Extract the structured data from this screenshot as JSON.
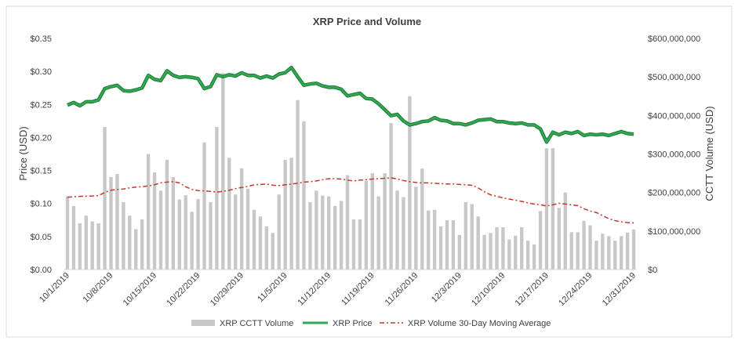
{
  "chart_data": {
    "type": "bar",
    "title": "XRP Price and Volume",
    "ylabel_left": "Price (USD)",
    "ylabel_right": "CCTT Volume (USD)",
    "y_left_range": [
      0,
      0.35
    ],
    "y_left_ticks": [
      "$0.00",
      "$0.05",
      "$0.10",
      "$0.15",
      "$0.20",
      "$0.25",
      "$0.30",
      "$0.35"
    ],
    "y_right_range": [
      0,
      600000000
    ],
    "y_right_ticks": [
      "$0",
      "$100,000,000",
      "$200,000,000",
      "$300,000,000",
      "$400,000,000",
      "$500,000,000",
      "$600,000,000"
    ],
    "x_tick_labels": [
      "10/1/2019",
      "10/8/2019",
      "10/15/2019",
      "10/22/2019",
      "10/29/2019",
      "11/5/2019",
      "11/12/2019",
      "11/19/2019",
      "11/26/2019",
      "12/3/2019",
      "12/10/2019",
      "12/17/2019",
      "12/24/2019",
      "12/31/2019"
    ],
    "x_start": "2019-10-01",
    "x_end": "2019-12-31",
    "grid": false,
    "legend_position": "bottom",
    "series": [
      {
        "name": "XRP CCTT Volume",
        "type": "bar",
        "axis": "right",
        "color": "#c8c8c8",
        "values": [
          190000000,
          165000000,
          120000000,
          140000000,
          125000000,
          120000000,
          370000000,
          240000000,
          248000000,
          175000000,
          140000000,
          105000000,
          130000000,
          300000000,
          252000000,
          205000000,
          285000000,
          240000000,
          182000000,
          193000000,
          150000000,
          183000000,
          330000000,
          175000000,
          370000000,
          510000000,
          290000000,
          195000000,
          263000000,
          210000000,
          155000000,
          138000000,
          112000000,
          95000000,
          195000000,
          285000000,
          290000000,
          440000000,
          385000000,
          175000000,
          205000000,
          192000000,
          190000000,
          165000000,
          178000000,
          245000000,
          130000000,
          130000000,
          230000000,
          250000000,
          190000000,
          250000000,
          380000000,
          205000000,
          188000000,
          450000000,
          215000000,
          262000000,
          153000000,
          155000000,
          112000000,
          128000000,
          128000000,
          90000000,
          175000000,
          170000000,
          138000000,
          90000000,
          95000000,
          110000000,
          110000000,
          78000000,
          88000000,
          110000000,
          75000000,
          65000000,
          152000000,
          315000000,
          315000000,
          160000000,
          200000000,
          97000000,
          97000000,
          126000000,
          115000000,
          75000000,
          93000000,
          87000000,
          75000000,
          87000000,
          96000000,
          104000000
        ]
      },
      {
        "name": "XRP Price",
        "type": "line",
        "axis": "left",
        "color": "#2fa84f",
        "values": [
          0.249,
          0.253,
          0.248,
          0.254,
          0.254,
          0.257,
          0.274,
          0.277,
          0.279,
          0.271,
          0.27,
          0.272,
          0.275,
          0.294,
          0.288,
          0.286,
          0.301,
          0.294,
          0.291,
          0.292,
          0.291,
          0.289,
          0.274,
          0.277,
          0.295,
          0.292,
          0.295,
          0.293,
          0.298,
          0.294,
          0.294,
          0.29,
          0.293,
          0.29,
          0.296,
          0.298,
          0.306,
          0.292,
          0.279,
          0.281,
          0.282,
          0.278,
          0.276,
          0.276,
          0.273,
          0.263,
          0.265,
          0.267,
          0.259,
          0.258,
          0.251,
          0.242,
          0.233,
          0.235,
          0.225,
          0.219,
          0.221,
          0.224,
          0.225,
          0.23,
          0.226,
          0.225,
          0.221,
          0.221,
          0.219,
          0.222,
          0.226,
          0.227,
          0.228,
          0.224,
          0.224,
          0.222,
          0.221,
          0.222,
          0.219,
          0.219,
          0.213,
          0.193,
          0.208,
          0.204,
          0.208,
          0.206,
          0.209,
          0.203,
          0.205,
          0.204,
          0.205,
          0.203,
          0.206,
          0.209,
          0.206,
          0.205
        ]
      },
      {
        "name": "XRP Volume 30-Day Moving Average",
        "type": "line",
        "axis": "right",
        "style": "dash-dot",
        "color": "#c0392b",
        "values": [
          188000000,
          189000000,
          190000000,
          190500000,
          191000000,
          192000000,
          200000000,
          206000000,
          208000000,
          209000000,
          212000000,
          214000000,
          215000000,
          217000000,
          220000000,
          225000000,
          227000000,
          228000000,
          225000000,
          215000000,
          208000000,
          205000000,
          204000000,
          203000000,
          201000000,
          203000000,
          206000000,
          210000000,
          213000000,
          216000000,
          220000000,
          221000000,
          222000000,
          219000000,
          218000000,
          220000000,
          222000000,
          224000000,
          227000000,
          228000000,
          230000000,
          233000000,
          236000000,
          236000000,
          235000000,
          232000000,
          230000000,
          232000000,
          233000000,
          235000000,
          236000000,
          237000000,
          238000000,
          235000000,
          231000000,
          228000000,
          226000000,
          225000000,
          225000000,
          224000000,
          223000000,
          222000000,
          222000000,
          221000000,
          220000000,
          219000000,
          212000000,
          202000000,
          194000000,
          190000000,
          186000000,
          183000000,
          180000000,
          177000000,
          173000000,
          170000000,
          168000000,
          165000000,
          168000000,
          172000000,
          170000000,
          168000000,
          166000000,
          158000000,
          152000000,
          148000000,
          140000000,
          132000000,
          127000000,
          124000000,
          122000000,
          121000000
        ]
      }
    ]
  }
}
